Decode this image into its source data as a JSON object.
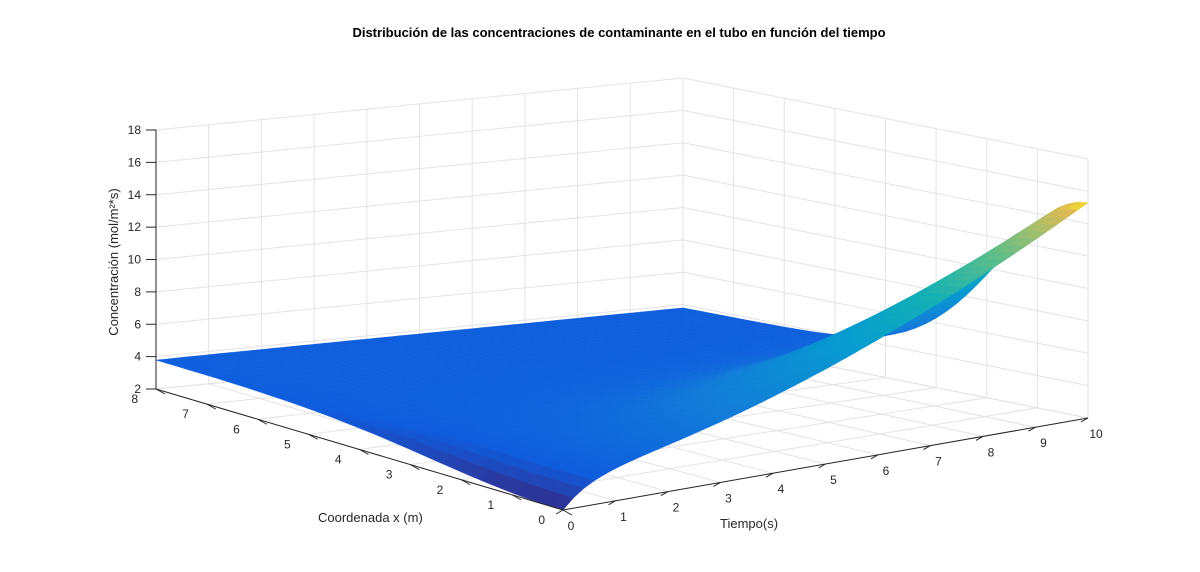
{
  "chart_data": {
    "type": "surface",
    "title": "Distribución de las concentraciones de contaminante en el tubo en función del tiempo",
    "xlabel": "Tiempo(s)",
    "ylabel": "Coordenada x (m)",
    "zlabel": "Concentración (mol/m²*s)",
    "x_ticks": [
      "0",
      "1",
      "2",
      "3",
      "4",
      "5",
      "6",
      "7",
      "8",
      "9",
      "10"
    ],
    "y_ticks": [
      "0",
      "1",
      "2",
      "3",
      "4",
      "5",
      "6",
      "7",
      "8"
    ],
    "z_ticks": [
      "2",
      "4",
      "6",
      "8",
      "10",
      "12",
      "14",
      "16",
      "18"
    ],
    "xlim": [
      0,
      10
    ],
    "ylim": [
      0,
      8
    ],
    "zlim": [
      2,
      18
    ],
    "grid": true,
    "colormap": "parula",
    "surface_values": {
      "at_x0_t0": 3.8,
      "far_corner_x8_t10": 3.8,
      "peak_x0_t10": 15.3,
      "plateau": 4.0
    }
  }
}
